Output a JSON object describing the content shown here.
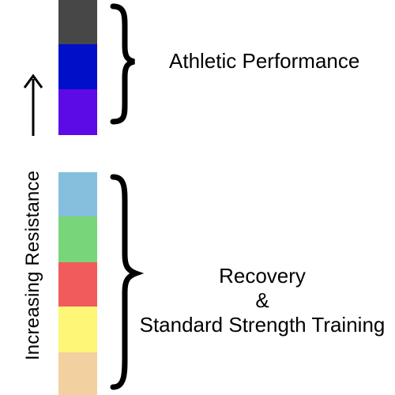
{
  "legend": {
    "axis_label": "Increasing Resistance",
    "swatches": [
      {
        "name": "dark-gray",
        "color": "#474747"
      },
      {
        "name": "blue",
        "color": "#0010c8"
      },
      {
        "name": "violet",
        "color": "#5c0ae6"
      },
      {
        "name": "light-blue",
        "color": "#85bfdd"
      },
      {
        "name": "green",
        "color": "#78d57a"
      },
      {
        "name": "red",
        "color": "#f15b5b"
      },
      {
        "name": "yellow",
        "color": "#fdf677"
      },
      {
        "name": "tan",
        "color": "#f3d09f"
      }
    ]
  },
  "groups": {
    "athletic": {
      "label": "Athletic Performance"
    },
    "recovery": {
      "line1": "Recovery",
      "line2": "&",
      "line3": "Standard Strength Training"
    }
  }
}
